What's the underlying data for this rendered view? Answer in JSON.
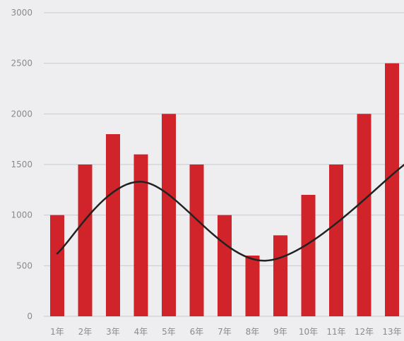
{
  "chart_data": {
    "type": "bar",
    "categories": [
      "1年",
      "2年",
      "3年",
      "4年",
      "5年",
      "6年",
      "7年",
      "8年",
      "9年",
      "10年",
      "11年",
      "12年",
      "13年"
    ],
    "values": [
      1000,
      1500,
      1800,
      1600,
      2000,
      1500,
      1000,
      600,
      800,
      1200,
      1500,
      2000,
      2500
    ],
    "trend": {
      "type": "line",
      "smooth": true,
      "x": [
        "1年",
        "4年",
        "8.5年",
        "13.5年"
      ],
      "y": [
        620,
        1330,
        550,
        1510
      ]
    },
    "y_ticks": [
      0,
      500,
      1000,
      1500,
      2000,
      2500,
      3000
    ],
    "ylim": [
      0,
      3000
    ],
    "grid": true,
    "colors": {
      "bar": "#d0232a",
      "trend": "#222222",
      "grid": "#c9c9cf",
      "background": "#eeeef0"
    }
  }
}
